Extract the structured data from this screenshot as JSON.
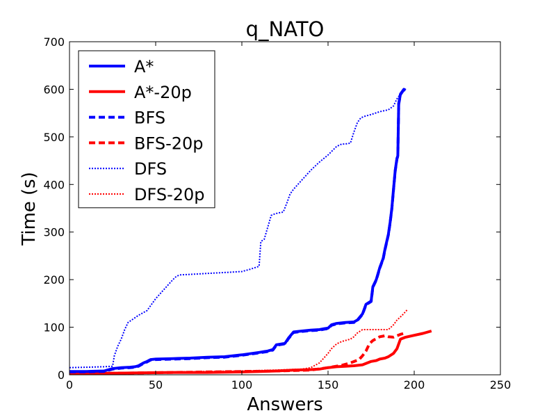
{
  "chart_data": {
    "type": "line",
    "title": "q_NATO",
    "xlabel": "Answers",
    "ylabel": "Time (s)",
    "xlim": [
      0,
      250
    ],
    "ylim": [
      0,
      700
    ],
    "xticks": [
      "0",
      "50",
      "100",
      "150",
      "200",
      "250"
    ],
    "yticks": [
      "0",
      "100",
      "200",
      "300",
      "400",
      "500",
      "600",
      "700"
    ],
    "grid": false,
    "legend_position": "top-left",
    "series": [
      {
        "name": "A*",
        "color": "#0000ff",
        "style": "solid",
        "x": [
          0,
          10,
          20,
          25,
          30,
          35,
          38,
          40,
          43,
          45,
          47,
          50,
          60,
          70,
          80,
          90,
          100,
          110,
          115,
          118,
          120,
          125,
          127,
          130,
          135,
          140,
          145,
          148,
          150,
          152,
          155,
          160,
          165,
          167,
          170,
          172,
          175,
          176,
          178,
          180,
          182,
          183,
          185,
          186,
          187,
          188,
          189,
          190,
          190.5,
          191,
          192,
          193,
          194,
          195
        ],
        "y": [
          7,
          7,
          8,
          13,
          15,
          16,
          17,
          19,
          25,
          28,
          32,
          33,
          34,
          35,
          37,
          38,
          42,
          47,
          50,
          53,
          63,
          66,
          77,
          90,
          92,
          94,
          95,
          97,
          98,
          105,
          108,
          110,
          111,
          115,
          128,
          148,
          155,
          185,
          200,
          225,
          245,
          263,
          295,
          320,
          350,
          390,
          430,
          455,
          460,
          570,
          590,
          595,
          600,
          598
        ]
      },
      {
        "name": "A*-20p",
        "color": "#ff0000",
        "style": "solid",
        "x": [
          0,
          20,
          40,
          60,
          80,
          100,
          110,
          120,
          130,
          140,
          145,
          150,
          155,
          160,
          165,
          170,
          175,
          178,
          180,
          183,
          185,
          188,
          190,
          192,
          195,
          200,
          205,
          210
        ],
        "y": [
          2,
          3,
          4,
          5,
          5,
          6,
          7,
          8,
          10,
          11,
          12,
          15,
          17,
          18,
          19,
          21,
          28,
          30,
          33,
          35,
          38,
          45,
          55,
          75,
          79,
          83,
          87,
          92
        ]
      },
      {
        "name": "BFS",
        "color": "#0000ff",
        "style": "dashed",
        "x": [
          0,
          10,
          20,
          25,
          30,
          35,
          38,
          40,
          43,
          45,
          47,
          50,
          60,
          70,
          80,
          90,
          100,
          110,
          115,
          118,
          120,
          125,
          127,
          130,
          135,
          140,
          145,
          148,
          150,
          152,
          155,
          160,
          165,
          167,
          170,
          172,
          175,
          176,
          178,
          180,
          182,
          183,
          185,
          186,
          187,
          188,
          189,
          190,
          190.5,
          191,
          192,
          193,
          194,
          195
        ],
        "y": [
          6,
          6,
          7,
          12,
          14,
          15,
          16,
          18,
          24,
          27,
          31,
          32,
          33,
          34,
          36,
          37,
          41,
          46,
          49,
          52,
          62,
          65,
          76,
          89,
          91,
          93,
          94,
          96,
          97,
          104,
          107,
          109,
          110,
          114,
          127,
          147,
          154,
          184,
          199,
          224,
          244,
          262,
          294,
          319,
          349,
          389,
          429,
          454,
          459,
          569,
          589,
          594,
          599,
          597
        ]
      },
      {
        "name": "BFS-20p",
        "color": "#ff0000",
        "style": "dashed",
        "x": [
          0,
          20,
          40,
          60,
          80,
          100,
          120,
          140,
          150,
          158,
          163,
          168,
          170,
          172,
          174,
          176,
          178,
          180,
          183,
          185,
          188,
          190,
          192,
          195
        ],
        "y": [
          2,
          3,
          4,
          5,
          6,
          7,
          8,
          10,
          15,
          20,
          25,
          32,
          40,
          50,
          65,
          72,
          76,
          80,
          82,
          80,
          79,
          82,
          85,
          88
        ]
      },
      {
        "name": "DFS",
        "color": "#0000ff",
        "style": "dotted",
        "x": [
          0,
          10,
          20,
          25,
          26,
          28,
          30,
          32,
          34,
          36,
          40,
          45,
          48,
          50,
          55,
          60,
          62,
          64,
          70,
          80,
          90,
          100,
          105,
          110,
          111,
          113,
          115,
          117,
          119,
          121,
          124,
          126,
          128,
          130,
          135,
          140,
          145,
          150,
          155,
          158,
          160,
          163,
          165,
          167,
          169,
          171,
          175,
          180,
          185,
          188,
          190,
          192,
          194
        ],
        "y": [
          15,
          16,
          17,
          18,
          40,
          60,
          75,
          95,
          110,
          115,
          125,
          135,
          150,
          160,
          180,
          200,
          207,
          210,
          211,
          213,
          215,
          217,
          222,
          228,
          280,
          285,
          310,
          335,
          338,
          340,
          342,
          360,
          380,
          390,
          410,
          430,
          447,
          462,
          480,
          485,
          485,
          487,
          510,
          530,
          540,
          543,
          547,
          553,
          557,
          565,
          580,
          590,
          600
        ]
      },
      {
        "name": "DFS-20p",
        "color": "#ff0000",
        "style": "dotted",
        "x": [
          0,
          20,
          40,
          60,
          80,
          100,
          120,
          135,
          140,
          145,
          150,
          152,
          155,
          158,
          160,
          163,
          165,
          167,
          170,
          175,
          180,
          185,
          188,
          190,
          193,
          196
        ],
        "y": [
          3,
          4,
          5,
          6,
          7,
          8,
          10,
          12,
          15,
          25,
          45,
          55,
          65,
          70,
          72,
          75,
          80,
          88,
          95,
          95,
          95,
          95,
          105,
          115,
          125,
          137
        ]
      }
    ]
  }
}
